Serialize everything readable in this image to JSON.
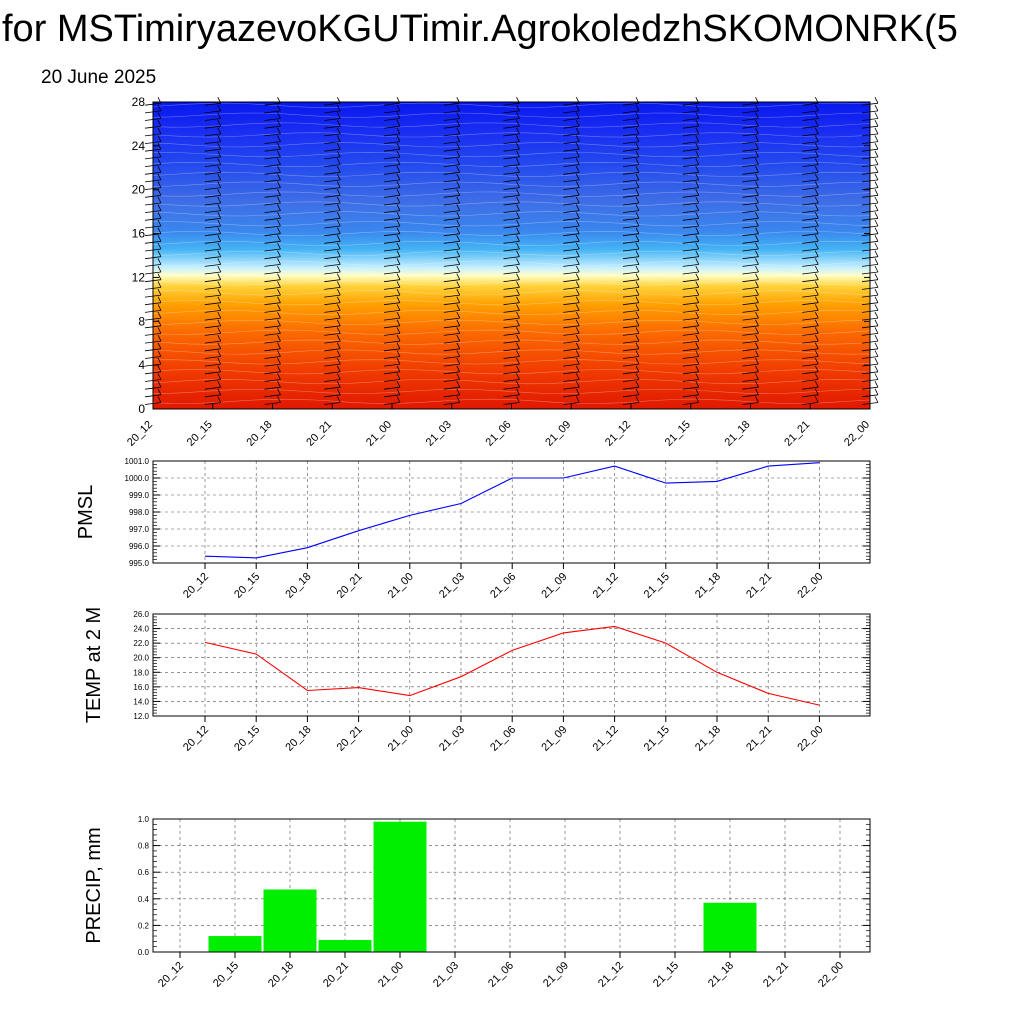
{
  "title": "for MSTimiryazevoKGUTimir.AgrokoledzhSKOMONRK(5",
  "date": "20 June 2025",
  "colors": {
    "pmsl_line": "#0000ff",
    "temp_line": "#ff0000",
    "precip_bar": "#00ee00",
    "cross_section_top": "#0a18f0",
    "cross_section_mid": "#ffffc8",
    "cross_section_bottom": "#e42000"
  },
  "chart_data": [
    {
      "type": "heatmap",
      "id": "cross-section",
      "x_tick_labels": [
        "20_12",
        "20_15",
        "20_18",
        "20_21",
        "21_00",
        "21_03",
        "21_06",
        "21_09",
        "21_12",
        "21_15",
        "21_18",
        "21_21",
        "22_00"
      ],
      "y_tick_labels": [
        "0",
        "4",
        "8",
        "12",
        "16",
        "20",
        "24",
        "28"
      ],
      "ylim": [
        0,
        28
      ],
      "xlabel": "",
      "ylabel": "",
      "grid": false,
      "overlay": "wind barbs"
    },
    {
      "type": "line",
      "id": "pmsl",
      "ylabel": "PMSL",
      "categories": [
        "20_12",
        "20_15",
        "20_18",
        "20_21",
        "21_00",
        "21_03",
        "21_06",
        "21_09",
        "21_12",
        "21_15",
        "21_18",
        "21_21",
        "22_00"
      ],
      "values": [
        995.4,
        995.3,
        995.9,
        996.9,
        997.8,
        998.5,
        1000.0,
        1000.0,
        1000.7,
        999.7,
        999.8,
        1000.7,
        1000.9
      ],
      "ylim": [
        995.0,
        1001.0
      ],
      "y_tick_labels": [
        "995.0",
        "996.0",
        "997.0",
        "998.0",
        "999.0",
        "1000.0",
        "1001.0"
      ],
      "grid": true
    },
    {
      "type": "line",
      "id": "temp",
      "ylabel": "TEMP at 2 M",
      "categories": [
        "20_12",
        "20_15",
        "20_18",
        "20_21",
        "21_00",
        "21_03",
        "21_06",
        "21_09",
        "21_12",
        "21_15",
        "21_18",
        "21_21",
        "22_00"
      ],
      "values": [
        22.1,
        20.5,
        15.5,
        15.9,
        14.8,
        17.4,
        21.0,
        23.4,
        24.3,
        22.0,
        18.0,
        15.1,
        13.5
      ],
      "ylim": [
        12.0,
        26.0
      ],
      "y_tick_labels": [
        "12.0",
        "14.0",
        "16.0",
        "18.0",
        "20.0",
        "22.0",
        "24.0",
        "26.0"
      ],
      "grid": true
    },
    {
      "type": "bar",
      "id": "precip",
      "ylabel": "PRECIP, mm",
      "categories": [
        "20_12",
        "20_15",
        "20_18",
        "20_21",
        "21_00",
        "21_03",
        "21_06",
        "21_09",
        "21_12",
        "21_15",
        "21_18",
        "21_21",
        "22_00"
      ],
      "values": [
        0,
        0.12,
        0.47,
        0.09,
        0.98,
        0,
        0,
        0,
        0,
        0,
        0.37,
        0,
        0
      ],
      "ylim": [
        0.0,
        1.0
      ],
      "y_tick_labels": [
        "0.0",
        "0.2",
        "0.4",
        "0.6",
        "0.8",
        "1.0"
      ],
      "grid": true
    }
  ]
}
